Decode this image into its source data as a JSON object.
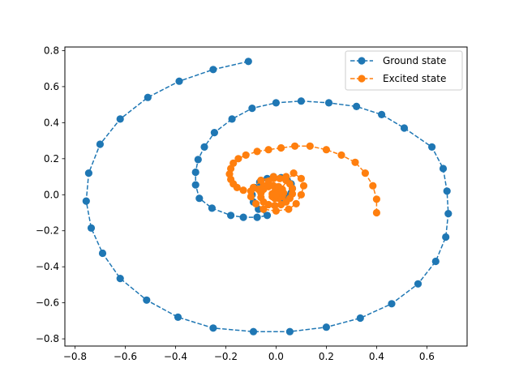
{
  "chart_data": {
    "type": "line",
    "title": "",
    "xlabel": "",
    "ylabel": "",
    "xlim": [
      -0.84,
      0.76
    ],
    "ylim": [
      -0.84,
      0.82
    ],
    "x_ticks": [
      -0.8,
      -0.6,
      -0.4,
      -0.2,
      0.0,
      0.2,
      0.4,
      0.6
    ],
    "x_tick_labels": [
      "−0.8",
      "−0.6",
      "−0.4",
      "−0.2",
      "0.0",
      "0.2",
      "0.4",
      "0.6"
    ],
    "y_ticks": [
      -0.8,
      -0.6,
      -0.4,
      -0.2,
      0.0,
      0.2,
      0.4,
      0.6,
      0.8
    ],
    "y_tick_labels": [
      "−0.8",
      "−0.6",
      "−0.4",
      "−0.2",
      "0.0",
      "0.2",
      "0.4",
      "0.6",
      "0.8"
    ],
    "grid": false,
    "legend_position": "upper right",
    "line_style": "dashed",
    "marker": "circle",
    "series": [
      {
        "name": "Ground state",
        "color": "#1f77b4",
        "points": [
          [
            -0.11,
            0.74
          ],
          [
            -0.25,
            0.695
          ],
          [
            -0.385,
            0.63
          ],
          [
            -0.51,
            0.54
          ],
          [
            -0.62,
            0.42
          ],
          [
            -0.7,
            0.28
          ],
          [
            -0.745,
            0.12
          ],
          [
            -0.755,
            -0.035
          ],
          [
            -0.735,
            -0.185
          ],
          [
            -0.69,
            -0.325
          ],
          [
            -0.62,
            -0.465
          ],
          [
            -0.515,
            -0.585
          ],
          [
            -0.39,
            -0.68
          ],
          [
            -0.25,
            -0.74
          ],
          [
            -0.09,
            -0.76
          ],
          [
            0.055,
            -0.76
          ],
          [
            0.2,
            -0.735
          ],
          [
            0.335,
            -0.685
          ],
          [
            0.46,
            -0.605
          ],
          [
            0.565,
            -0.495
          ],
          [
            0.635,
            -0.37
          ],
          [
            0.675,
            -0.235
          ],
          [
            0.685,
            -0.105
          ],
          [
            0.68,
            0.02
          ],
          [
            0.665,
            0.145
          ],
          [
            0.62,
            0.265
          ],
          [
            0.51,
            0.37
          ],
          [
            0.42,
            0.445
          ],
          [
            0.32,
            0.49
          ],
          [
            0.21,
            0.51
          ],
          [
            0.1,
            0.52
          ],
          [
            0.0,
            0.51
          ],
          [
            -0.095,
            0.48
          ],
          [
            -0.175,
            0.42
          ],
          [
            -0.245,
            0.345
          ],
          [
            -0.285,
            0.265
          ],
          [
            -0.31,
            0.195
          ],
          [
            -0.32,
            0.125
          ],
          [
            -0.32,
            0.055
          ],
          [
            -0.305,
            -0.02
          ],
          [
            -0.255,
            -0.075
          ],
          [
            -0.18,
            -0.115
          ],
          [
            -0.13,
            -0.125
          ],
          [
            -0.075,
            -0.125
          ],
          [
            -0.035,
            -0.115
          ],
          [
            -0.07,
            -0.08
          ],
          [
            -0.09,
            -0.04
          ],
          [
            -0.095,
            0.0
          ],
          [
            -0.085,
            0.04
          ],
          [
            -0.065,
            0.07
          ],
          [
            -0.035,
            0.09
          ],
          [
            -0.01,
            0.1
          ],
          [
            0.02,
            0.095
          ],
          [
            0.045,
            0.08
          ],
          [
            0.06,
            0.06
          ],
          [
            0.065,
            0.035
          ],
          [
            0.06,
            0.01
          ],
          [
            0.045,
            -0.01
          ],
          [
            0.025,
            -0.02
          ],
          [
            0.01,
            -0.015
          ],
          [
            0.0,
            0.0
          ]
        ]
      },
      {
        "name": "Excited state",
        "color": "#ff7f0e",
        "points": [
          [
            0.4,
            -0.1
          ],
          [
            0.4,
            -0.025
          ],
          [
            0.385,
            0.05
          ],
          [
            0.355,
            0.12
          ],
          [
            0.315,
            0.18
          ],
          [
            0.26,
            0.22
          ],
          [
            0.2,
            0.25
          ],
          [
            0.135,
            0.27
          ],
          [
            0.075,
            0.27
          ],
          [
            0.02,
            0.26
          ],
          [
            -0.03,
            0.25
          ],
          [
            -0.075,
            0.24
          ],
          [
            -0.12,
            0.22
          ],
          [
            -0.15,
            0.2
          ],
          [
            -0.17,
            0.175
          ],
          [
            -0.18,
            0.145
          ],
          [
            -0.185,
            0.115
          ],
          [
            -0.18,
            0.085
          ],
          [
            -0.17,
            0.06
          ],
          [
            -0.155,
            0.04
          ],
          [
            -0.13,
            0.025
          ],
          [
            -0.1,
            0.02
          ],
          [
            -0.07,
            0.03
          ],
          [
            -0.05,
            0.05
          ],
          [
            -0.03,
            0.075
          ],
          [
            -0.01,
            0.09
          ],
          [
            0.015,
            0.09
          ],
          [
            0.04,
            0.08
          ],
          [
            0.055,
            0.06
          ],
          [
            0.065,
            0.035
          ],
          [
            0.065,
            0.005
          ],
          [
            0.055,
            -0.02
          ],
          [
            0.04,
            -0.04
          ],
          [
            0.02,
            -0.055
          ],
          [
            -0.005,
            -0.06
          ],
          [
            -0.03,
            -0.055
          ],
          [
            -0.05,
            -0.04
          ],
          [
            -0.06,
            -0.015
          ],
          [
            -0.06,
            0.01
          ],
          [
            -0.05,
            0.03
          ],
          [
            -0.03,
            0.045
          ],
          [
            -0.01,
            0.05
          ],
          [
            0.01,
            0.045
          ],
          [
            0.025,
            0.03
          ],
          [
            0.03,
            0.01
          ],
          [
            0.025,
            -0.01
          ],
          [
            0.01,
            -0.02
          ],
          [
            -0.005,
            -0.02
          ],
          [
            -0.015,
            -0.01
          ],
          [
            -0.015,
            0.005
          ],
          [
            -0.005,
            0.015
          ],
          [
            0.005,
            0.01
          ],
          [
            0.0,
            0.0
          ],
          [
            0.07,
            0.12
          ],
          [
            0.1,
            0.09
          ],
          [
            0.11,
            0.05
          ],
          [
            0.1,
            0.0
          ],
          [
            0.08,
            -0.05
          ],
          [
            0.05,
            -0.08
          ],
          [
            0.0,
            -0.09
          ],
          [
            -0.05,
            -0.08
          ],
          [
            -0.08,
            -0.05
          ],
          [
            -0.1,
            -0.01
          ],
          [
            -0.09,
            0.04
          ],
          [
            -0.06,
            0.08
          ],
          [
            -0.01,
            0.1
          ],
          [
            0.04,
            0.1
          ]
        ]
      }
    ]
  }
}
